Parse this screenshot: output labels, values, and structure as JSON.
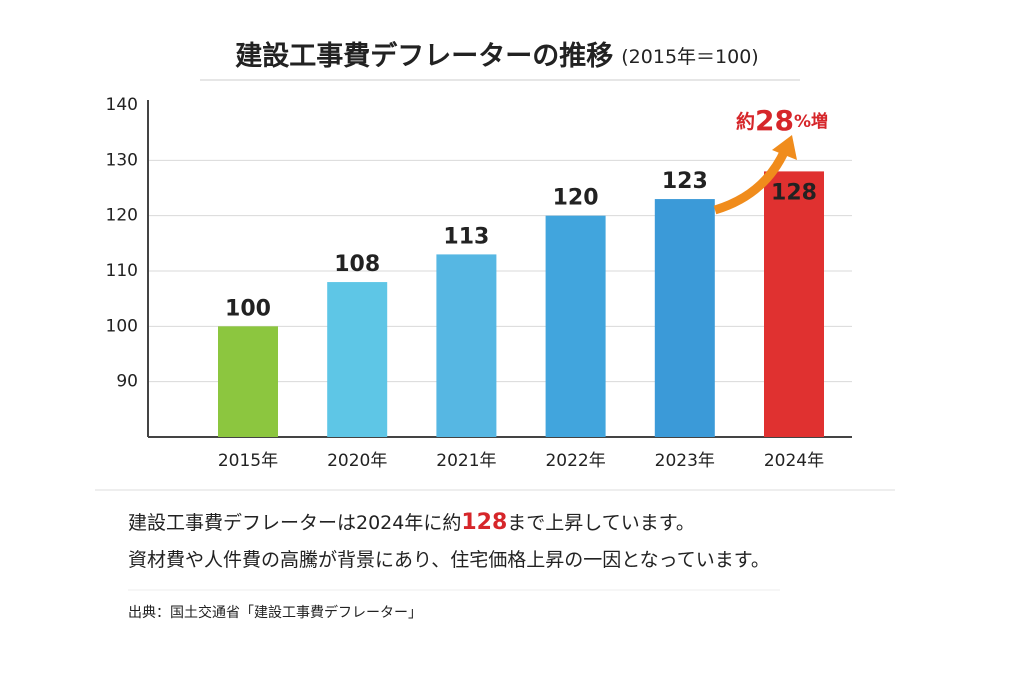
{
  "chart_data": {
    "type": "bar",
    "title": "建設工事費デフレーターの推移",
    "subtitle": "(2015年＝100)",
    "categories": [
      "2015年",
      "2020年",
      "2021年",
      "2022年",
      "2023年",
      "2024年"
    ],
    "values": [
      100,
      108,
      113,
      120,
      123,
      128
    ],
    "colors": [
      "#8cc63f",
      "#5ec6e6",
      "#56b7e3",
      "#41a5dd",
      "#3b9ad8",
      "#e03130"
    ],
    "ylim": [
      80,
      140
    ],
    "yticks": [
      90,
      100,
      110,
      120,
      130,
      140
    ],
    "grid": true,
    "annotation": {
      "prefix": "約",
      "number": "28",
      "suffix": "%増"
    },
    "notes": [
      [
        "建設工事費デフレーターは2024年に約",
        "128",
        "まで上昇しています。"
      ],
      [
        "資材費や人件費の高騰が背景にあり、住宅価格上昇の一因となっています。"
      ]
    ],
    "source": "出典：国土交通省「建設工事費デフレーター」"
  }
}
